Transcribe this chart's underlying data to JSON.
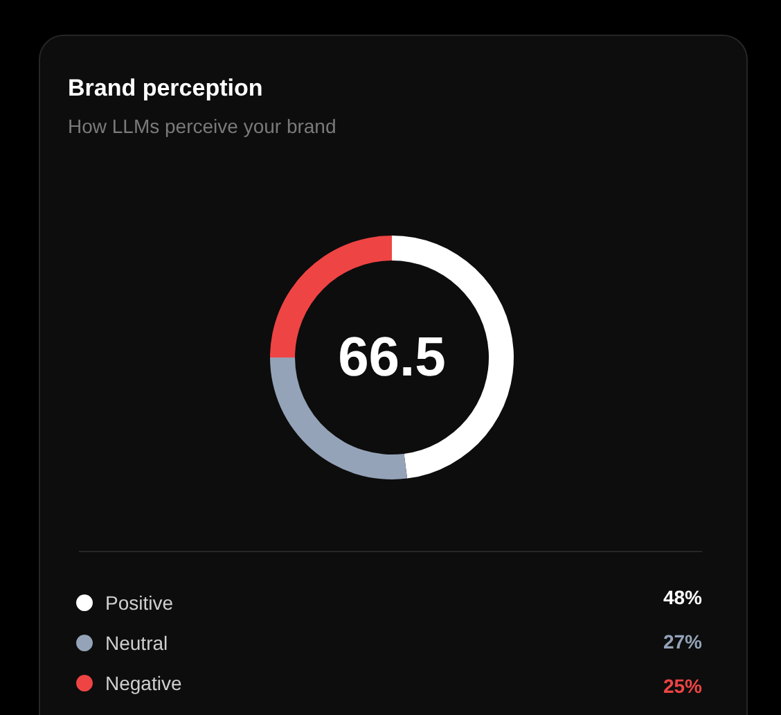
{
  "chart_data": {
    "type": "donut",
    "title": "Brand perception",
    "subtitle": "How LLMs perceive your brand",
    "categories": [
      "Positive",
      "Neutral",
      "Negative"
    ],
    "values": [
      48,
      27,
      25
    ],
    "colors": [
      "#ffffff",
      "#94a3b8",
      "#ef4444"
    ],
    "value_labels": [
      "48%",
      "27%",
      "25%"
    ],
    "annotations": [
      "66.5"
    ],
    "legend": "bottom"
  }
}
